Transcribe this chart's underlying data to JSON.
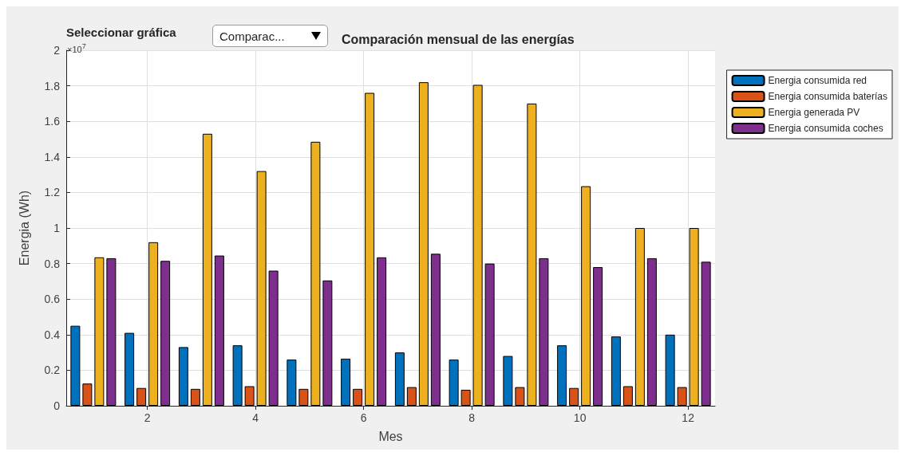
{
  "chart_data": {
    "type": "bar",
    "title": "Comparación mensual de las energías",
    "xlabel": "Mes",
    "ylabel": "Energia (Wh)",
    "annotations": [
      "Seleccionar gráfica",
      "Comparac...",
      "×10$^{7}$"
    ],
    "x": [
      1,
      2,
      3,
      4,
      5,
      6,
      7,
      8,
      9,
      10,
      11,
      12
    ],
    "xlim": [
      0.5,
      12.5
    ],
    "xticks": [
      2,
      4,
      6,
      8,
      10,
      12
    ],
    "ylim": [
      0,
      2
    ],
    "yticks": [
      0,
      0.2,
      0.4,
      0.6,
      0.8,
      1,
      1.2,
      1.4,
      1.6,
      1.8,
      2
    ],
    "series": [
      {
        "name": "Energia consumida red",
        "color": "#0072bd",
        "values": [
          0.45,
          0.41,
          0.33,
          0.34,
          0.26,
          0.265,
          0.3,
          0.26,
          0.28,
          0.34,
          0.39,
          0.4
        ]
      },
      {
        "name": "Energia consumida baterías",
        "color": "#d95319",
        "values": [
          0.125,
          0.1,
          0.095,
          0.11,
          0.095,
          0.095,
          0.105,
          0.09,
          0.105,
          0.1,
          0.11,
          0.105
        ]
      },
      {
        "name": "Energia generada PV",
        "color": "#edb120",
        "values": [
          0.835,
          0.92,
          1.53,
          1.32,
          1.485,
          1.76,
          1.82,
          1.805,
          1.7,
          1.235,
          1.0,
          1.0
        ]
      },
      {
        "name": "Energia consumida coches",
        "color": "#7e2f8e",
        "values": [
          0.83,
          0.815,
          0.845,
          0.76,
          0.705,
          0.835,
          0.855,
          0.8,
          0.83,
          0.78,
          0.83,
          0.81
        ]
      }
    ],
    "grid": true,
    "legend": "right"
  }
}
